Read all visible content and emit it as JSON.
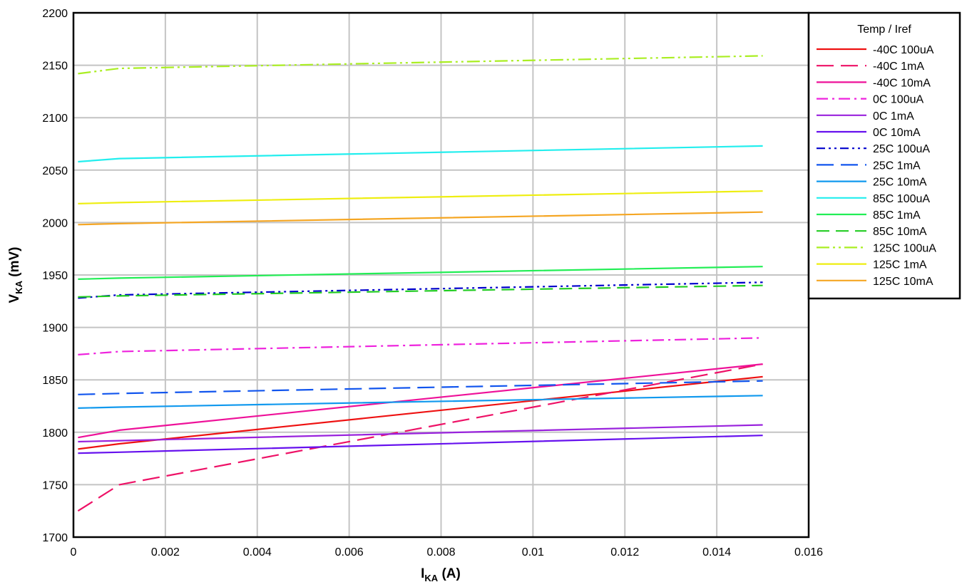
{
  "chart_data": {
    "type": "line",
    "title": "",
    "xlabel": {
      "main": "I",
      "sub": "KA",
      "unit": " (A)"
    },
    "ylabel": {
      "main": "V",
      "sub": "KA",
      "unit": " (mV)"
    },
    "xlim": [
      0,
      0.016
    ],
    "ylim": [
      1700,
      2200
    ],
    "xticks": [
      0,
      0.002,
      0.004,
      0.006,
      0.008,
      0.01,
      0.012,
      0.014,
      0.016
    ],
    "xtick_labels": [
      "0",
      "0.002",
      "0.004",
      "0.006",
      "0.008",
      "0.01",
      "0.012",
      "0.014",
      "0.016"
    ],
    "yticks": [
      1700,
      1750,
      1800,
      1850,
      1900,
      1950,
      2000,
      2050,
      2100,
      2150,
      2200
    ],
    "ytick_labels": [
      "1700",
      "1750",
      "1800",
      "1850",
      "1900",
      "1950",
      "2000",
      "2050",
      "2100",
      "2150",
      "2200"
    ],
    "grid": true,
    "legend_title": "Temp / Iref",
    "legend_position": "right",
    "series": [
      {
        "name": "-40C 100uA",
        "color": "#ee1111",
        "dash": "",
        "x": [
          0.0001,
          0.001,
          0.015
        ],
        "y": [
          1784,
          1789,
          1853
        ]
      },
      {
        "name": "-40C 1mA",
        "color": "#ee1166",
        "dash": "24 10",
        "x": [
          0.0001,
          0.001,
          0.015
        ],
        "y": [
          1725,
          1750,
          1865
        ]
      },
      {
        "name": "-40C 10mA",
        "color": "#ee1199",
        "dash": "",
        "x": [
          0.0001,
          0.001,
          0.015
        ],
        "y": [
          1795,
          1802,
          1865
        ]
      },
      {
        "name": "0C 100uA",
        "color": "#ee22dd",
        "dash": "16 6 3 6",
        "x": [
          0.0001,
          0.001,
          0.015
        ],
        "y": [
          1874,
          1877,
          1890
        ]
      },
      {
        "name": "0C 1mA",
        "color": "#9922dd",
        "dash": "",
        "x": [
          0.0001,
          0.001,
          0.015
        ],
        "y": [
          1791,
          1792,
          1807
        ]
      },
      {
        "name": "0C 10mA",
        "color": "#6611ee",
        "dash": "",
        "x": [
          0.0001,
          0.001,
          0.015
        ],
        "y": [
          1780,
          1781,
          1797
        ]
      },
      {
        "name": "25C 100uA",
        "color": "#0000cc",
        "dash": "12 5 3 5 3 5",
        "x": [
          0.0001,
          0.001,
          0.015
        ],
        "y": [
          1928,
          1931,
          1943
        ]
      },
      {
        "name": "25C 1mA",
        "color": "#1155ee",
        "dash": "24 10",
        "x": [
          0.0001,
          0.001,
          0.015
        ],
        "y": [
          1836,
          1837,
          1849
        ]
      },
      {
        "name": "25C 10mA",
        "color": "#1199ee",
        "dash": "",
        "x": [
          0.0001,
          0.001,
          0.015
        ],
        "y": [
          1823,
          1824,
          1835
        ]
      },
      {
        "name": "85C 100uA",
        "color": "#22eeee",
        "dash": "",
        "x": [
          0.0001,
          0.001,
          0.015
        ],
        "y": [
          2058,
          2061,
          2073
        ]
      },
      {
        "name": "85C 1mA",
        "color": "#22ee55",
        "dash": "",
        "x": [
          0.0001,
          0.001,
          0.015
        ],
        "y": [
          1946,
          1947,
          1958
        ]
      },
      {
        "name": "85C 10mA",
        "color": "#22cc22",
        "dash": "18 9",
        "x": [
          0.0001,
          0.001,
          0.015
        ],
        "y": [
          1929,
          1930,
          1940
        ]
      },
      {
        "name": "125C 100uA",
        "color": "#aaee22",
        "dash": "18 5 3 5 3 5",
        "x": [
          0.0001,
          0.001,
          0.015
        ],
        "y": [
          2142,
          2147,
          2159
        ]
      },
      {
        "name": "125C 1mA",
        "color": "#eeee11",
        "dash": "",
        "x": [
          0.0001,
          0.001,
          0.015
        ],
        "y": [
          2018,
          2019,
          2030
        ]
      },
      {
        "name": "125C 10mA",
        "color": "#f5a623",
        "dash": "",
        "x": [
          0.0001,
          0.001,
          0.015
        ],
        "y": [
          1998,
          1999,
          2010
        ]
      }
    ]
  }
}
